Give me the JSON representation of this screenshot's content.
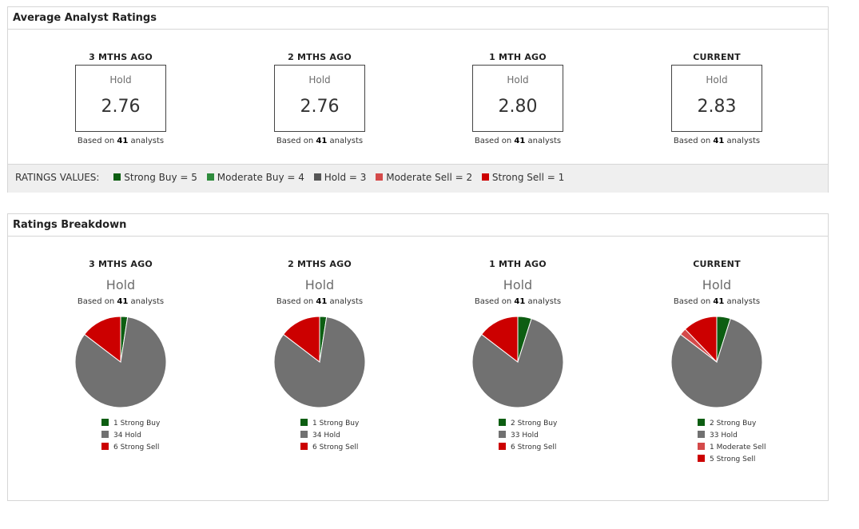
{
  "avg_panel": {
    "title": "Average Analyst Ratings",
    "columns": [
      {
        "title": "3 MTHS AGO",
        "rating": "Hold",
        "value": "2.76",
        "based_prefix": "Based on",
        "analysts": "41",
        "based_suffix": "analysts"
      },
      {
        "title": "2 MTHS AGO",
        "rating": "Hold",
        "value": "2.76",
        "based_prefix": "Based on",
        "analysts": "41",
        "based_suffix": "analysts"
      },
      {
        "title": "1 MTH AGO",
        "rating": "Hold",
        "value": "2.80",
        "based_prefix": "Based on",
        "analysts": "41",
        "based_suffix": "analysts"
      },
      {
        "title": "CURRENT",
        "rating": "Hold",
        "value": "2.83",
        "based_prefix": "Based on",
        "analysts": "41",
        "based_suffix": "analysts"
      }
    ],
    "ratings_values": {
      "caption": "RATINGS VALUES:",
      "items": [
        {
          "label": "Strong Buy = 5",
          "color": "#0d5e12"
        },
        {
          "label": "Moderate Buy = 4",
          "color": "#2e8b3c"
        },
        {
          "label": "Hold = 3",
          "color": "#555555"
        },
        {
          "label": "Moderate Sell = 2",
          "color": "#d44a4a"
        },
        {
          "label": "Strong Sell = 1",
          "color": "#cc0000"
        }
      ]
    }
  },
  "breakdown_panel": {
    "title": "Ratings Breakdown"
  },
  "chart_data": [
    {
      "type": "pie",
      "title": "3 MTHS AGO",
      "subtitle": "Hold",
      "based_prefix": "Based on",
      "analysts": "41",
      "based_suffix": "analysts",
      "slices": [
        {
          "name": "Strong Buy",
          "value": 1,
          "label": "1 Strong Buy",
          "color": "#0d5e12"
        },
        {
          "name": "Hold",
          "value": 34,
          "label": "34 Hold",
          "color": "#717171"
        },
        {
          "name": "Strong Sell",
          "value": 6,
          "label": "6 Strong Sell",
          "color": "#cc0000"
        }
      ]
    },
    {
      "type": "pie",
      "title": "2 MTHS AGO",
      "subtitle": "Hold",
      "based_prefix": "Based on",
      "analysts": "41",
      "based_suffix": "analysts",
      "slices": [
        {
          "name": "Strong Buy",
          "value": 1,
          "label": "1 Strong Buy",
          "color": "#0d5e12"
        },
        {
          "name": "Hold",
          "value": 34,
          "label": "34 Hold",
          "color": "#717171"
        },
        {
          "name": "Strong Sell",
          "value": 6,
          "label": "6 Strong Sell",
          "color": "#cc0000"
        }
      ]
    },
    {
      "type": "pie",
      "title": "1 MTH AGO",
      "subtitle": "Hold",
      "based_prefix": "Based on",
      "analysts": "41",
      "based_suffix": "analysts",
      "slices": [
        {
          "name": "Strong Buy",
          "value": 2,
          "label": "2 Strong Buy",
          "color": "#0d5e12"
        },
        {
          "name": "Hold",
          "value": 33,
          "label": "33 Hold",
          "color": "#717171"
        },
        {
          "name": "Strong Sell",
          "value": 6,
          "label": "6 Strong Sell",
          "color": "#cc0000"
        }
      ]
    },
    {
      "type": "pie",
      "title": "CURRENT",
      "subtitle": "Hold",
      "based_prefix": "Based on",
      "analysts": "41",
      "based_suffix": "analysts",
      "slices": [
        {
          "name": "Strong Buy",
          "value": 2,
          "label": "2 Strong Buy",
          "color": "#0d5e12"
        },
        {
          "name": "Hold",
          "value": 33,
          "label": "33 Hold",
          "color": "#717171"
        },
        {
          "name": "Moderate Sell",
          "value": 1,
          "label": "1 Moderate Sell",
          "color": "#d44a4a"
        },
        {
          "name": "Strong Sell",
          "value": 5,
          "label": "5 Strong Sell",
          "color": "#cc0000"
        }
      ]
    }
  ]
}
